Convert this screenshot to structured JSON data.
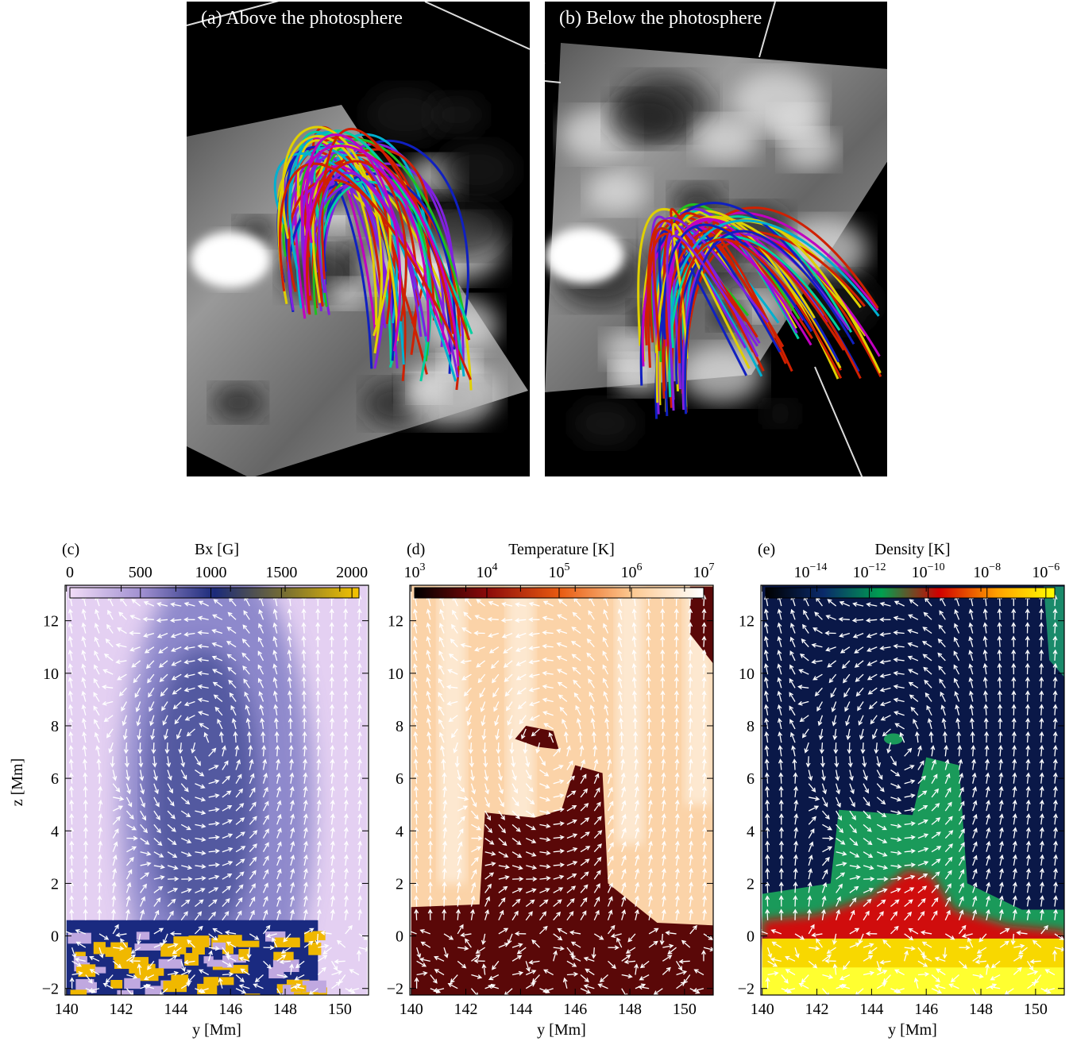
{
  "panels_top": [
    {
      "label": "(a) Above the photosphere"
    },
    {
      "label": "(b) Below the photosphere"
    }
  ],
  "ylabel": "z [Mm]",
  "panels_bottom": [
    {
      "label": "(c)",
      "colorbar_title": "Bx [G]",
      "log": false,
      "colorbar_lim": [
        0,
        2050
      ],
      "colorbar_ticks": [
        0,
        500,
        1000,
        1500,
        2000
      ],
      "colormap": [
        "#f2dcf7",
        "#9f8fd0",
        "#1b2a7a",
        "#7a7030",
        "#f5c400"
      ],
      "xlabel": "y [Mm]",
      "xlim": [
        139.95,
        151.05
      ],
      "xticks": [
        140,
        142,
        144,
        146,
        148,
        150
      ],
      "ylim": [
        -2.25,
        13.35
      ],
      "yticks": [
        {
          "value": -2,
          "label": "−2"
        },
        0,
        2,
        4,
        6,
        8,
        10,
        12
      ]
    },
    {
      "label": "(d)",
      "colorbar_title": "Temperature [K]",
      "log": true,
      "colorbar_lim": [
        1000,
        10000000
      ],
      "colorbar_ticks": [
        {
          "value": 1000,
          "base": "10",
          "exp": "3"
        },
        {
          "value": 10000,
          "base": "10",
          "exp": "4"
        },
        {
          "value": 100000,
          "base": "10",
          "exp": "5"
        },
        {
          "value": 1000000,
          "base": "10",
          "exp": "6"
        },
        {
          "value": 10000000,
          "base": "10",
          "exp": "7"
        }
      ],
      "colormap": [
        "#000000",
        "#8b0a0a",
        "#e85a10",
        "#fcc890",
        "#ffffff"
      ],
      "xlabel": "y [Mm]",
      "xlim": [
        139.95,
        151.05
      ],
      "xticks": [
        140,
        142,
        144,
        146,
        148,
        150
      ],
      "ylim": [
        -2.25,
        13.35
      ],
      "yticks": [
        {
          "value": -2,
          "label": "−2"
        },
        0,
        2,
        4,
        6,
        8,
        10,
        12
      ]
    },
    {
      "label": "(e)",
      "colorbar_title": "Density [K]",
      "log": true,
      "colorbar_lim": [
        3e-16,
        2e-06
      ],
      "colorbar_ticks": [
        {
          "value": 1e-14,
          "base": "10",
          "exp": "−14"
        },
        {
          "value": 1e-12,
          "base": "10",
          "exp": "−12"
        },
        {
          "value": 1e-10,
          "base": "10",
          "exp": "−10"
        },
        {
          "value": 1e-08,
          "base": "10",
          "exp": "−8"
        },
        {
          "value": 1e-06,
          "base": "10",
          "exp": "−6"
        }
      ],
      "colormap": [
        "#000000",
        "#0a2a6a",
        "#00a050",
        "#d00000",
        "#ffa000",
        "#ffff00"
      ],
      "xlabel": "y [Mm]",
      "xlim": [
        139.95,
        151.05
      ],
      "xticks": [
        140,
        142,
        144,
        146,
        148,
        150
      ],
      "ylim": [
        -2.25,
        13.35
      ],
      "yticks": [
        {
          "value": -2,
          "label": "−2"
        },
        0,
        2,
        4,
        6,
        8,
        10,
        12
      ]
    }
  ]
}
